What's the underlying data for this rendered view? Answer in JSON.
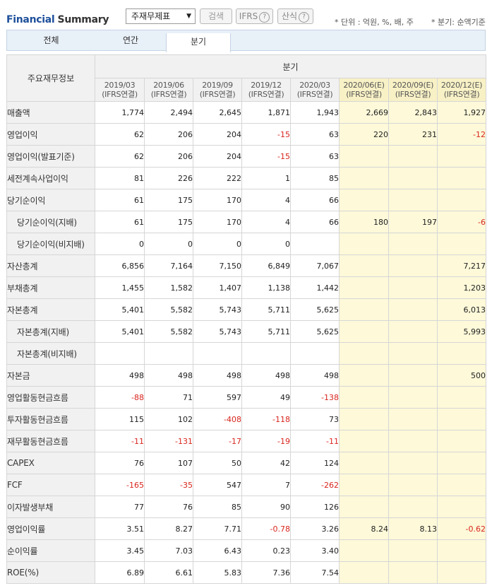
{
  "header": {
    "title_part1": "Financial",
    "title_part2": "Summary",
    "select_value": "주재무제표",
    "search_label": "검색",
    "ifrs_label": "IFRS",
    "calc_label": "산식",
    "help_mark": "?",
    "unit_text": "* 단위 : 억원, %, 배, 주",
    "basis_text": "* 분기: 순액기준"
  },
  "tabs": [
    "전체",
    "연간",
    "분기"
  ],
  "table": {
    "corner_label": "주요재무정보",
    "group_label": "분기",
    "columns": [
      {
        "period": "2019/03",
        "sub": "(IFRS연결)",
        "estimate": false
      },
      {
        "period": "2019/06",
        "sub": "(IFRS연결)",
        "estimate": false
      },
      {
        "period": "2019/09",
        "sub": "(IFRS연결)",
        "estimate": false
      },
      {
        "period": "2019/12",
        "sub": "(IFRS연결)",
        "estimate": false
      },
      {
        "period": "2020/03",
        "sub": "(IFRS연결)",
        "estimate": false
      },
      {
        "period": "2020/06(E)",
        "sub": "(IFRS연결)",
        "estimate": true
      },
      {
        "period": "2020/09(E)",
        "sub": "(IFRS연결)",
        "estimate": true
      },
      {
        "period": "2020/12(E)",
        "sub": "(IFRS연결)",
        "estimate": true
      }
    ],
    "rows": [
      {
        "label": "매출액",
        "sub": false,
        "values": [
          "1,774",
          "2,494",
          "2,645",
          "1,871",
          "1,943",
          "2,669",
          "2,843",
          "1,927"
        ]
      },
      {
        "label": "영업이익",
        "sub": false,
        "values": [
          "62",
          "206",
          "204",
          "-15",
          "63",
          "220",
          "231",
          "-12"
        ]
      },
      {
        "label": "영업이익(발표기준)",
        "sub": false,
        "values": [
          "62",
          "206",
          "204",
          "-15",
          "63",
          "",
          "",
          ""
        ]
      },
      {
        "label": "세전계속사업이익",
        "sub": false,
        "values": [
          "81",
          "226",
          "222",
          "1",
          "85",
          "",
          "",
          ""
        ]
      },
      {
        "label": "당기순이익",
        "sub": false,
        "values": [
          "61",
          "175",
          "170",
          "4",
          "66",
          "",
          "",
          ""
        ]
      },
      {
        "label": "당기순이익(지배)",
        "sub": true,
        "values": [
          "61",
          "175",
          "170",
          "4",
          "66",
          "180",
          "197",
          "-6"
        ]
      },
      {
        "label": "당기순이익(비지배)",
        "sub": true,
        "values": [
          "0",
          "0",
          "0",
          "0",
          "",
          "",
          "",
          ""
        ]
      },
      {
        "label": "자산총계",
        "sub": false,
        "values": [
          "6,856",
          "7,164",
          "7,150",
          "6,849",
          "7,067",
          "",
          "",
          "7,217"
        ]
      },
      {
        "label": "부채총계",
        "sub": false,
        "values": [
          "1,455",
          "1,582",
          "1,407",
          "1,138",
          "1,442",
          "",
          "",
          "1,203"
        ]
      },
      {
        "label": "자본총계",
        "sub": false,
        "values": [
          "5,401",
          "5,582",
          "5,743",
          "5,711",
          "5,625",
          "",
          "",
          "6,013"
        ]
      },
      {
        "label": "자본총계(지배)",
        "sub": true,
        "values": [
          "5,401",
          "5,582",
          "5,743",
          "5,711",
          "5,625",
          "",
          "",
          "5,993"
        ]
      },
      {
        "label": "자본총계(비지배)",
        "sub": true,
        "values": [
          "",
          "",
          "",
          "",
          "",
          "",
          "",
          ""
        ]
      },
      {
        "label": "자본금",
        "sub": false,
        "values": [
          "498",
          "498",
          "498",
          "498",
          "498",
          "",
          "",
          "500"
        ]
      },
      {
        "label": "영업활동현금흐름",
        "sub": false,
        "values": [
          "-88",
          "71",
          "597",
          "49",
          "-138",
          "",
          "",
          ""
        ]
      },
      {
        "label": "투자활동현금흐름",
        "sub": false,
        "values": [
          "115",
          "102",
          "-408",
          "-118",
          "73",
          "",
          "",
          ""
        ]
      },
      {
        "label": "재무활동현금흐름",
        "sub": false,
        "values": [
          "-11",
          "-131",
          "-17",
          "-19",
          "-11",
          "",
          "",
          ""
        ]
      },
      {
        "label": "CAPEX",
        "sub": false,
        "values": [
          "76",
          "107",
          "50",
          "42",
          "124",
          "",
          "",
          ""
        ]
      },
      {
        "label": "FCF",
        "sub": false,
        "values": [
          "-165",
          "-35",
          "547",
          "7",
          "-262",
          "",
          "",
          ""
        ]
      },
      {
        "label": "이자발생부채",
        "sub": false,
        "values": [
          "77",
          "76",
          "85",
          "90",
          "126",
          "",
          "",
          ""
        ]
      },
      {
        "label": "영업이익률",
        "sub": false,
        "values": [
          "3.51",
          "8.27",
          "7.71",
          "-0.78",
          "3.26",
          "8.24",
          "8.13",
          "-0.62"
        ]
      },
      {
        "label": "순이익률",
        "sub": false,
        "values": [
          "3.45",
          "7.03",
          "6.43",
          "0.23",
          "3.40",
          "",
          "",
          ""
        ]
      },
      {
        "label": "ROE(%)",
        "sub": false,
        "values": [
          "6.89",
          "6.61",
          "5.83",
          "7.36",
          "7.54",
          "",
          "",
          ""
        ]
      }
    ]
  }
}
